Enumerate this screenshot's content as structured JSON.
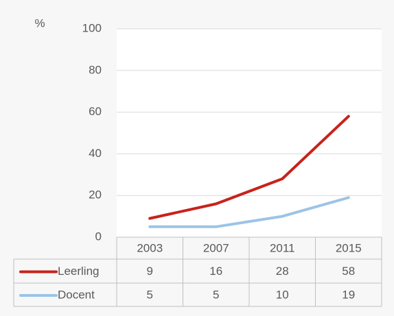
{
  "chart_data": {
    "type": "line",
    "y_label": "%",
    "categories": [
      "2003",
      "2007",
      "2011",
      "2015"
    ],
    "series": [
      {
        "name": "Leerling",
        "color": "#c8221b",
        "values": [
          9,
          16,
          28,
          58
        ]
      },
      {
        "name": "Docent",
        "color": "#9dc3e6",
        "values": [
          5,
          5,
          10,
          19
        ]
      }
    ],
    "ylim": [
      0,
      100
    ],
    "yticks": [
      0,
      20,
      40,
      60,
      80,
      100
    ],
    "grid": true
  }
}
